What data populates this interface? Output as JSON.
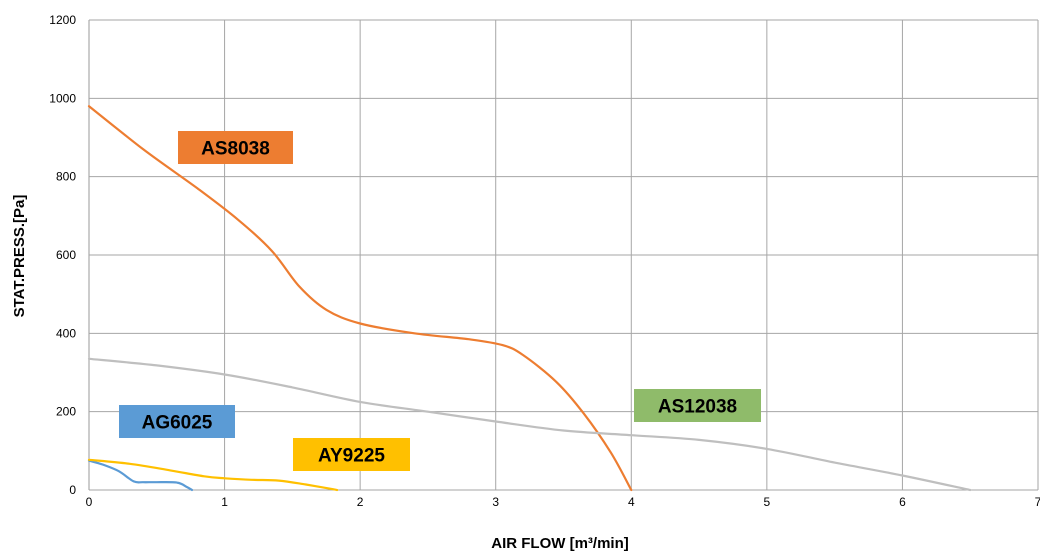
{
  "chart_data": {
    "type": "line",
    "xlabel": "AIR FLOW [m³/min]",
    "ylabel": "STAT.PRESS.[Pa]",
    "xlim": [
      0,
      7
    ],
    "ylim": [
      0,
      1200
    ],
    "x_ticks": [
      "0",
      "1",
      "2",
      "3",
      "4",
      "5",
      "6",
      "7"
    ],
    "y_ticks": [
      "0",
      "200",
      "400",
      "600",
      "800",
      "1000",
      "1200"
    ],
    "grid": true,
    "series": [
      {
        "name": "AS8038",
        "color": "#ed7d31",
        "label_bg": "#ed7d31",
        "points": [
          [
            0,
            980
          ],
          [
            0.4,
            870
          ],
          [
            0.8,
            770
          ],
          [
            1.1,
            690
          ],
          [
            1.35,
            610
          ],
          [
            1.55,
            520
          ],
          [
            1.75,
            460
          ],
          [
            2.0,
            425
          ],
          [
            2.4,
            400
          ],
          [
            2.8,
            385
          ],
          [
            3.05,
            370
          ],
          [
            3.2,
            345
          ],
          [
            3.45,
            275
          ],
          [
            3.65,
            195
          ],
          [
            3.85,
            95
          ],
          [
            4.0,
            0
          ]
        ]
      },
      {
        "name": "AS12038",
        "color": "#bfbfbf",
        "label_bg": "#8fbb6a",
        "points": [
          [
            0,
            335
          ],
          [
            0.5,
            318
          ],
          [
            1.0,
            295
          ],
          [
            1.5,
            262
          ],
          [
            2.0,
            225
          ],
          [
            2.5,
            200
          ],
          [
            3.0,
            175
          ],
          [
            3.5,
            152
          ],
          [
            4.0,
            140
          ],
          [
            4.5,
            128
          ],
          [
            5.0,
            105
          ],
          [
            5.5,
            70
          ],
          [
            6.0,
            37
          ],
          [
            6.5,
            0
          ]
        ]
      },
      {
        "name": "AG6025",
        "color": "#5b9bd5",
        "label_bg": "#5b9bd5",
        "points": [
          [
            0,
            75
          ],
          [
            0.1,
            65
          ],
          [
            0.22,
            48
          ],
          [
            0.33,
            22
          ],
          [
            0.4,
            20
          ],
          [
            0.5,
            20
          ],
          [
            0.65,
            19
          ],
          [
            0.72,
            8
          ],
          [
            0.76,
            0
          ]
        ]
      },
      {
        "name": "AY9225",
        "color": "#ffc000",
        "label_bg": "#ffc000",
        "points": [
          [
            0,
            77
          ],
          [
            0.3,
            67
          ],
          [
            0.6,
            50
          ],
          [
            0.85,
            35
          ],
          [
            1.0,
            30
          ],
          [
            1.2,
            26
          ],
          [
            1.4,
            24
          ],
          [
            1.6,
            14
          ],
          [
            1.8,
            2
          ],
          [
            1.83,
            0
          ]
        ]
      }
    ]
  }
}
